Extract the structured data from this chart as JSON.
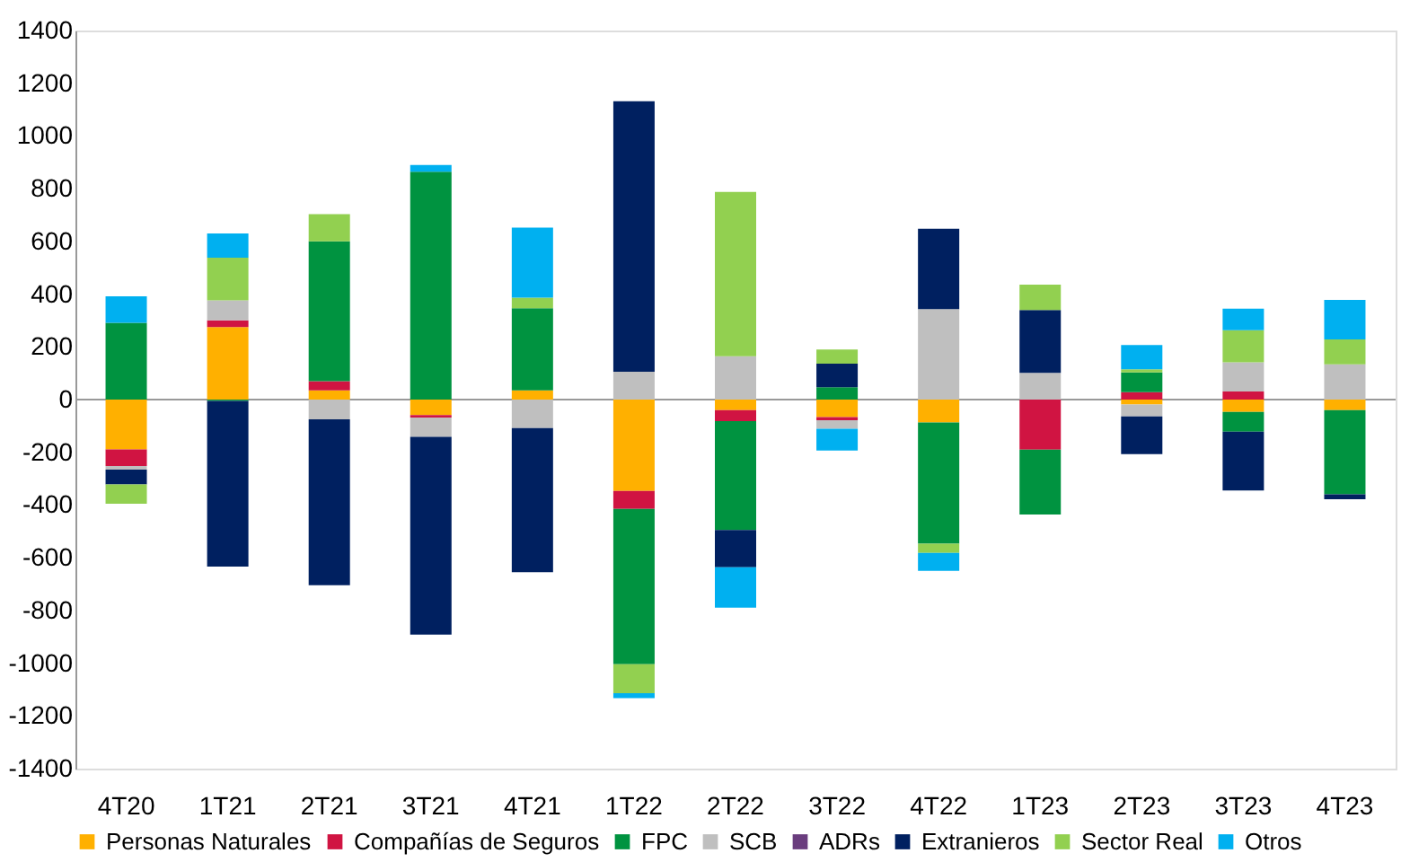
{
  "chart_data": {
    "type": "bar",
    "stacked": true,
    "categories": [
      "4T20",
      "1T21",
      "2T21",
      "3T21",
      "4T21",
      "1T22",
      "2T22",
      "3T22",
      "4T22",
      "1T23",
      "2T23",
      "3T23",
      "4T23"
    ],
    "series": [
      {
        "name": "Personas Naturales",
        "color": "#ffb000",
        "values": [
          -189,
          275,
          35,
          -59,
          35,
          -347,
          -40,
          -66,
          -87,
          0,
          -19,
          -47,
          -40
        ]
      },
      {
        "name": "Compañías de Seguros",
        "color": "#d01442",
        "values": [
          -63,
          26,
          35,
          -9,
          0,
          -68,
          -42,
          -12,
          0,
          -190,
          28,
          31,
          0
        ]
      },
      {
        "name": "FPC",
        "color": "#009340",
        "values": [
          291,
          -5,
          530,
          864,
          312,
          -589,
          -413,
          47,
          -460,
          -246,
          75,
          -75,
          -319
        ]
      },
      {
        "name": "SCB",
        "color": "#bfbfbf",
        "values": [
          -14,
          75,
          -75,
          -73,
          -108,
          106,
          164,
          -33,
          343,
          101,
          -45,
          110,
          134
        ]
      },
      {
        "name": "ADRs",
        "color": "#6a3d7e",
        "values": [
          null,
          null,
          null,
          null,
          null,
          null,
          null,
          null,
          null,
          null,
          null,
          null,
          null
        ]
      },
      {
        "name": "Extranieros",
        "color": "#002060",
        "values": [
          -56,
          -629,
          -629,
          -751,
          -547,
          1026,
          -141,
          89,
          305,
          239,
          -143,
          -223,
          -19
        ]
      },
      {
        "name": "Sector Real",
        "color": "#92d050",
        "values": [
          -73,
          162,
          103,
          0,
          40,
          -110,
          624,
          54,
          -35,
          96,
          12,
          122,
          94
        ]
      },
      {
        "name": "Otros",
        "color": "#00b0f0",
        "values": [
          101,
          92,
          0,
          26,
          265,
          -19,
          -153,
          -82,
          -68,
          0,
          92,
          82,
          150
        ]
      }
    ],
    "ylim": [
      -1400,
      1400
    ],
    "yticks": [
      -1400,
      -1200,
      -1000,
      -800,
      -600,
      -400,
      -200,
      0,
      200,
      400,
      600,
      800,
      1000,
      1200,
      1400
    ],
    "ref_lines": [
      {
        "axis": "y",
        "value": 0,
        "color": "#999999"
      }
    ],
    "grid": false,
    "legend": "bottom"
  }
}
